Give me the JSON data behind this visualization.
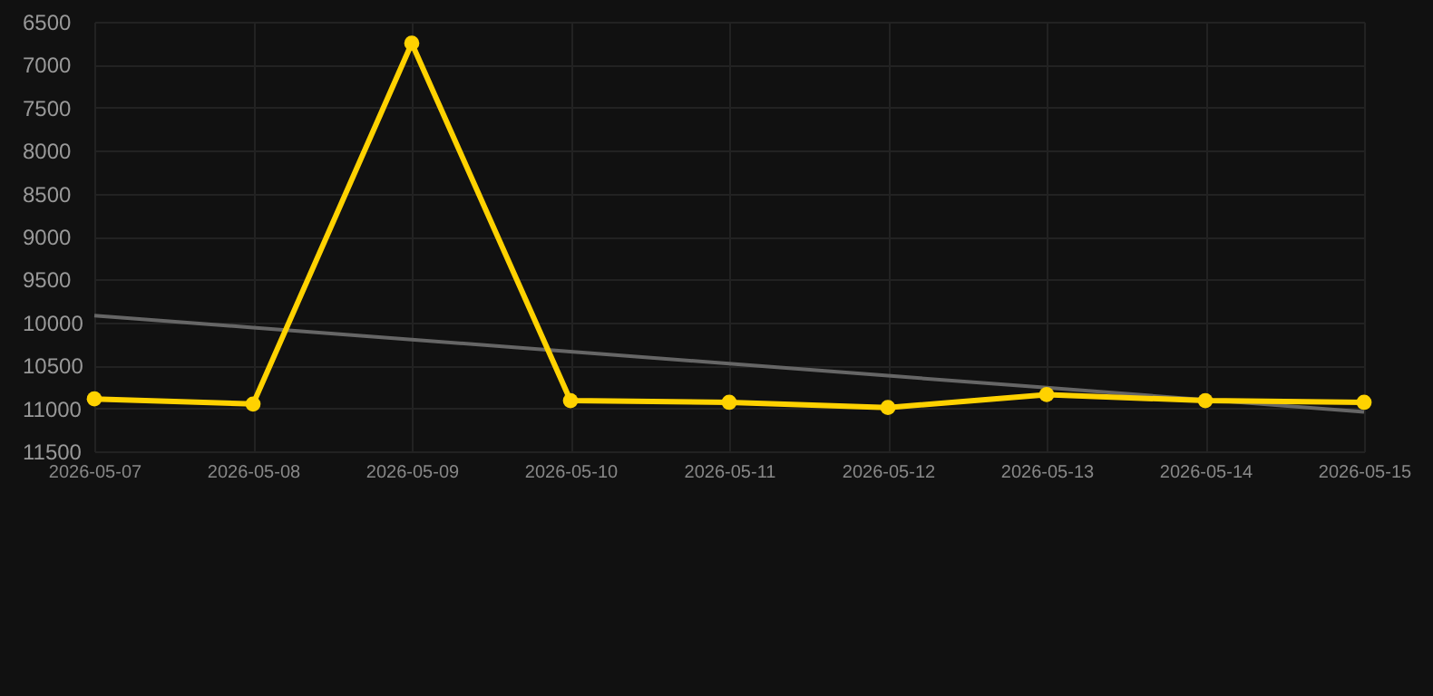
{
  "chart_data": {
    "type": "line",
    "categories": [
      "2026-05-07",
      "2026-05-08",
      "2026-05-09",
      "2026-05-10",
      "2026-05-11",
      "2026-05-12",
      "2026-05-13",
      "2026-05-14",
      "2026-05-15"
    ],
    "series": [
      {
        "color": "#ffd200",
        "marker": "circle",
        "values": [
          10890,
          10950,
          6750,
          10910,
          10930,
          10990,
          10840,
          10910,
          10930
        ]
      },
      {
        "type": "line",
        "color": "#666666",
        "marker": "none",
        "values": [
          9920,
          10060,
          10200,
          10340,
          10480,
          10620,
          10760,
          10900,
          11040
        ]
      }
    ],
    "ylim": [
      11500,
      6500
    ],
    "yticks": [
      6500,
      7000,
      7500,
      8000,
      8500,
      9000,
      9500,
      10000,
      10500,
      11000,
      11500
    ],
    "grid": true
  }
}
